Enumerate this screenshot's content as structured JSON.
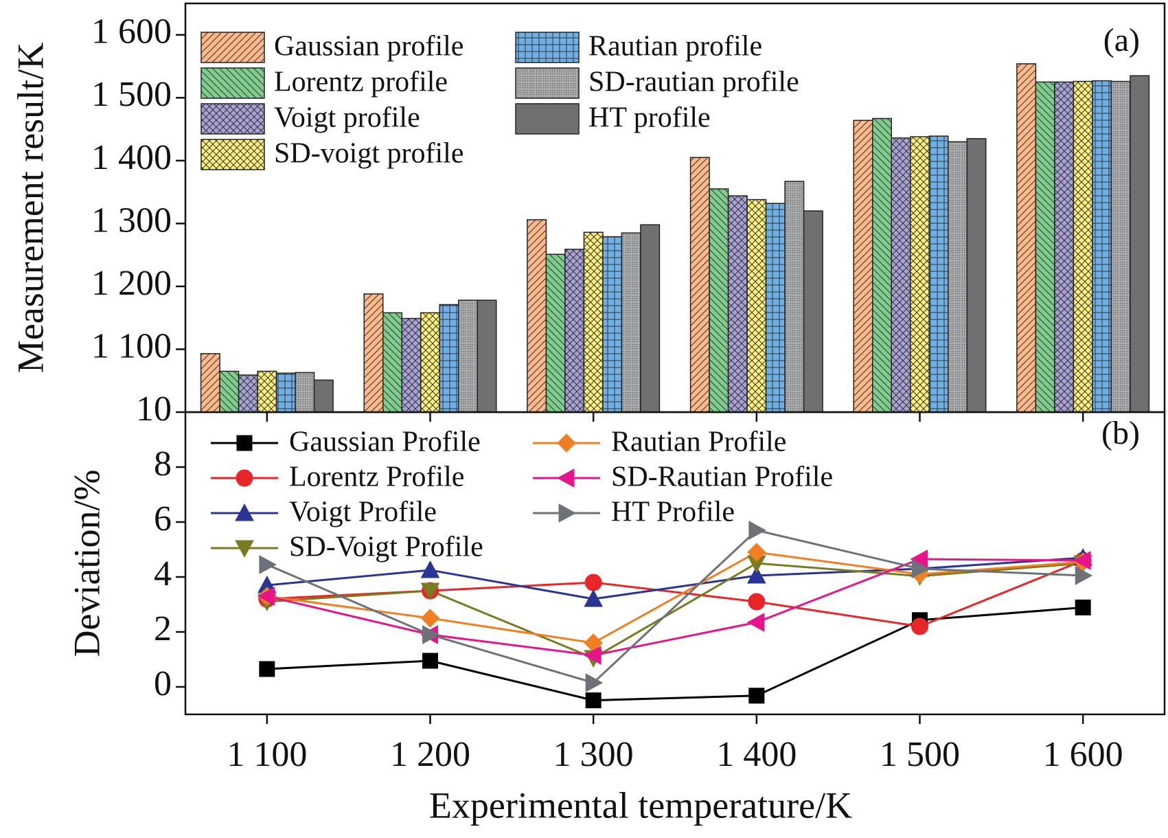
{
  "chart_data": [
    {
      "type": "bar",
      "ylabel": "Measurement result/K",
      "annotation": "(a)",
      "ylim": [
        1000,
        1650
      ],
      "yticks": [
        {
          "value": 1100,
          "label": "1 100"
        },
        {
          "value": 1200,
          "label": "1 200"
        },
        {
          "value": 1300,
          "label": "1 300"
        },
        {
          "value": 1400,
          "label": "1 400"
        },
        {
          "value": 1500,
          "label": "1 500"
        },
        {
          "value": 1600,
          "label": "1 600"
        }
      ],
      "legend": "upper left",
      "series": [
        {
          "name": "Gaussian profile",
          "color": "#f9b98c",
          "hatch": "/",
          "values": [
            1093,
            1188,
            1306,
            1405,
            1464,
            1554
          ]
        },
        {
          "name": "Lorentz profile",
          "color": "#7ccf8a",
          "hatch": "\\",
          "values": [
            1065,
            1158,
            1251,
            1355,
            1467,
            1525
          ]
        },
        {
          "name": "Voigt profile",
          "color": "#a8a3d6",
          "hatch": "x",
          "values": [
            1059,
            1149,
            1259,
            1344,
            1436,
            1525
          ]
        },
        {
          "name": "SD-voigt profile",
          "color": "#fff07a",
          "hatch": "x",
          "values": [
            1065,
            1158,
            1286,
            1338,
            1438,
            1526
          ]
        },
        {
          "name": "Rautian profile",
          "color": "#6fb0e6",
          "hatch": "+",
          "values": [
            1062,
            1171,
            1279,
            1332,
            1439,
            1527
          ]
        },
        {
          "name": "SD-rautian profile",
          "color": "#a9abad",
          "hatch": ".",
          "values": [
            1063,
            1178,
            1285,
            1367,
            1430,
            1526
          ]
        },
        {
          "name": "HT profile",
          "color": "#6e7072",
          "hatch": "none",
          "values": [
            1051,
            1178,
            1298,
            1320,
            1435,
            1535
          ]
        }
      ]
    },
    {
      "type": "line",
      "ylabel": "Deviation/%",
      "xlabel": "Experimental temperature/K",
      "annotation": "(b)",
      "categories": [
        "1 100",
        "1 200",
        "1 300",
        "1 400",
        "1 500",
        "1 600"
      ],
      "ylim": [
        -1,
        10
      ],
      "yticks": [
        0,
        2,
        4,
        6,
        8,
        10
      ],
      "legend": "upper left",
      "series": [
        {
          "name": "Gaussian Profile",
          "color": "#000000",
          "marker": "square",
          "values": [
            0.65,
            0.95,
            -0.49,
            -0.32,
            2.43,
            2.89
          ]
        },
        {
          "name": "Lorentz Profile",
          "color": "#e8262a",
          "marker": "circle",
          "values": [
            3.2,
            3.5,
            3.8,
            3.1,
            2.2,
            4.6
          ]
        },
        {
          "name": "Voigt Profile",
          "color": "#283593",
          "marker": "triangle-up",
          "values": [
            3.7,
            4.25,
            3.2,
            4.05,
            4.3,
            4.7
          ]
        },
        {
          "name": "SD-Voigt Profile",
          "color": "#7a7a20",
          "marker": "triangle-down",
          "values": [
            3.1,
            3.5,
            1.05,
            4.5,
            4.03,
            4.5
          ]
        },
        {
          "name": "Rautian Profile",
          "color": "#f07f22",
          "marker": "diamond",
          "values": [
            3.3,
            2.5,
            1.6,
            4.9,
            4.1,
            4.55
          ]
        },
        {
          "name": "SD-Rautian Profile",
          "color": "#e6158c",
          "marker": "triangle-left",
          "values": [
            3.3,
            1.9,
            1.15,
            2.35,
            4.65,
            4.6
          ]
        },
        {
          "name": "HT Profile",
          "color": "#6d7278",
          "marker": "triangle-right",
          "values": [
            4.45,
            1.9,
            0.15,
            5.7,
            4.3,
            4.05
          ]
        }
      ]
    }
  ]
}
